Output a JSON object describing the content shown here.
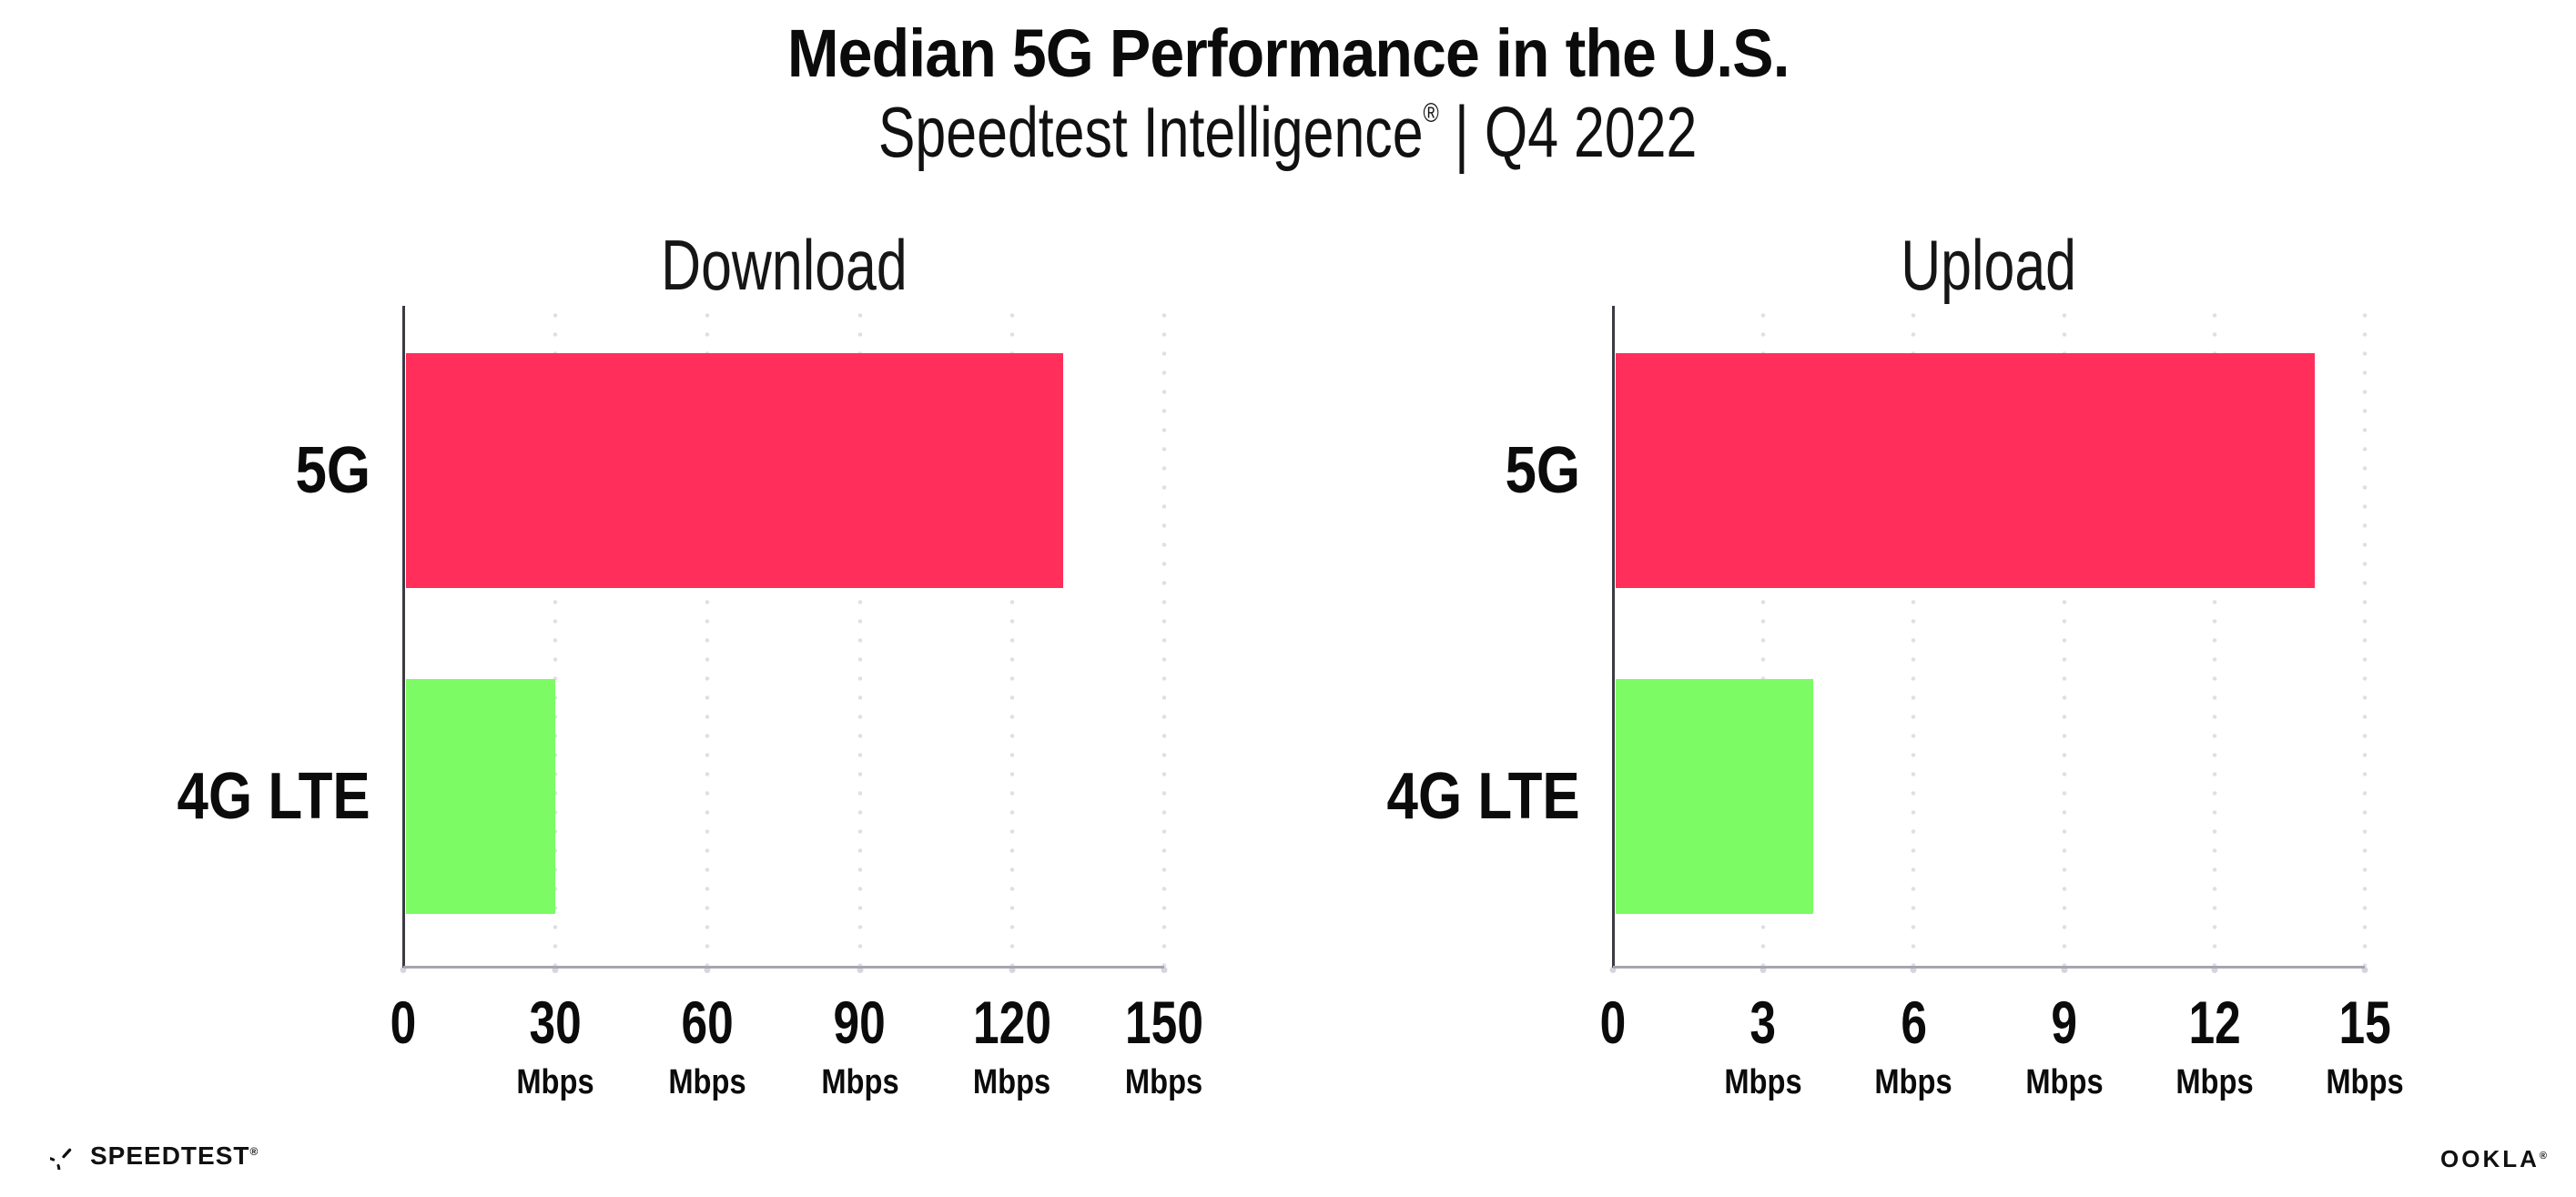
{
  "header": {
    "title": "Median 5G Performance in the U.S.",
    "subtitle_brand": "Speedtest Intelligence",
    "subtitle_reg": "®",
    "subtitle_sep": "|",
    "subtitle_period": "Q4 2022"
  },
  "chart_data": [
    {
      "type": "bar",
      "orientation": "horizontal",
      "title": "Download",
      "categories": [
        "5G",
        "4G LTE"
      ],
      "values": [
        130,
        30
      ],
      "unit": "Mbps",
      "xlim": [
        0,
        150
      ],
      "xticks": [
        0,
        30,
        60,
        90,
        120,
        150
      ],
      "tick_unit_label": "Mbps",
      "bar_colors": [
        "#FF2E5B",
        "#7CFB64"
      ],
      "grid": "vertical-dotted",
      "legend": "none"
    },
    {
      "type": "bar",
      "orientation": "horizontal",
      "title": "Upload",
      "categories": [
        "5G",
        "4G LTE"
      ],
      "values": [
        14,
        4
      ],
      "unit": "Mbps",
      "xlim": [
        0,
        15
      ],
      "xticks": [
        0,
        3,
        6,
        9,
        12,
        15
      ],
      "tick_unit_label": "Mbps",
      "bar_colors": [
        "#FF2E5B",
        "#7CFB64"
      ],
      "grid": "vertical-dotted",
      "legend": "none"
    }
  ],
  "colors": {
    "bar_5g": "#FF2E5B",
    "bar_4g_lte": "#7CFB64",
    "y_axis": "#3B3B44",
    "x_axis": "#A6A6AF",
    "gridline": "#DFDFE9",
    "text": "#0B0B0C",
    "background": "#FFFFFF"
  },
  "footer": {
    "speedtest_label": "SPEEDTEST",
    "speedtest_reg": "®",
    "ookla_label": "OOKLA",
    "ookla_reg": "®"
  }
}
